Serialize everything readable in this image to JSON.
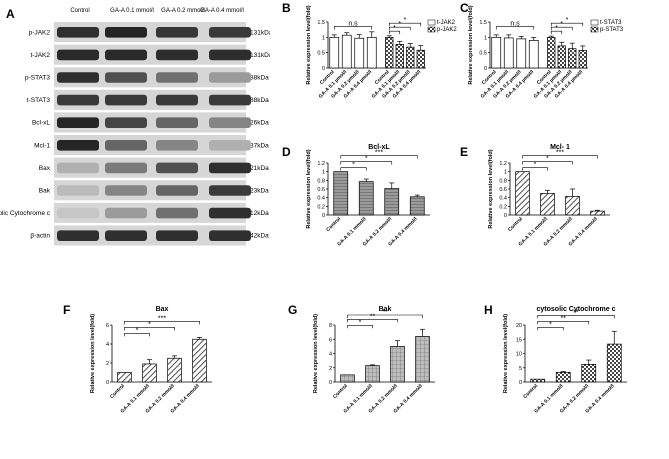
{
  "western_blot": {
    "panel_label": "A",
    "lanes": [
      "Control",
      "GA-A 0.1 mmol/l",
      "GA-A 0.2 mmol/l",
      "GA-A 0.4 mmol/l"
    ],
    "bands": [
      {
        "name": "p-JAK2",
        "size": "131kDa",
        "intensity": [
          0.85,
          0.9,
          0.82,
          0.8
        ]
      },
      {
        "name": "t-JAK2",
        "size": "131kDa",
        "intensity": [
          0.88,
          0.88,
          0.86,
          0.86
        ]
      },
      {
        "name": "p-STAT3",
        "size": "88kDa",
        "intensity": [
          0.85,
          0.7,
          0.55,
          0.35
        ]
      },
      {
        "name": "t-STAT3",
        "size": "88kDa",
        "intensity": [
          0.8,
          0.8,
          0.8,
          0.8
        ]
      },
      {
        "name": "Bcl-xL",
        "size": "26kDa",
        "intensity": [
          0.9,
          0.75,
          0.6,
          0.45
        ]
      },
      {
        "name": "Mcl-1",
        "size": "37kDa",
        "intensity": [
          0.9,
          0.6,
          0.45,
          0.25
        ]
      },
      {
        "name": "Bax",
        "size": "21kDa",
        "intensity": [
          0.25,
          0.5,
          0.7,
          0.85
        ]
      },
      {
        "name": "Bak",
        "size": "23kDa",
        "intensity": [
          0.2,
          0.45,
          0.6,
          0.8
        ]
      },
      {
        "name": "cytosolic Cytochrome c",
        "size": "12kDa",
        "intensity": [
          0.15,
          0.35,
          0.55,
          0.85
        ]
      },
      {
        "name": "β-actin",
        "size": "42kDa",
        "intensity": [
          0.85,
          0.85,
          0.85,
          0.85
        ]
      }
    ]
  },
  "chart_data": [
    {
      "panel": "B",
      "type": "bar",
      "title": "",
      "categories": [
        "Control",
        "GA-A 0.1 μmol/l",
        "GA-A 0.2 μmol/l",
        "GA-A 0.4 μmol/l"
      ],
      "series": [
        {
          "name": "t-JAK2",
          "values": [
            1.0,
            1.07,
            0.97,
            1.0
          ],
          "errors": [
            0.08,
            0.08,
            0.12,
            0.18
          ]
        },
        {
          "name": "p-JAK2",
          "values": [
            1.0,
            0.77,
            0.68,
            0.58
          ],
          "errors": [
            0.05,
            0.1,
            0.12,
            0.15
          ]
        }
      ],
      "ylabel": "Relative expression level(fold)",
      "ylim": [
        0,
        1.5
      ],
      "yticks": [
        0.0,
        0.5,
        1.0,
        1.5
      ],
      "legend": "top-right",
      "annotations": [
        {
          "label": "n.s",
          "from": 0,
          "to": 3,
          "series": 0
        },
        {
          "label": "*",
          "from": 0,
          "to": 1,
          "series": 1
        },
        {
          "label": "*",
          "from": 0,
          "to": 2,
          "series": 1
        },
        {
          "label": "*",
          "from": 0,
          "to": 3,
          "series": 1
        }
      ]
    },
    {
      "panel": "C",
      "type": "bar",
      "title": "",
      "categories": [
        "Control",
        "GA-A 0.1 μmol/l",
        "GA-A 0.2 μmol/l",
        "GA-A 0.4 μmol/l"
      ],
      "series": [
        {
          "name": "t-STAT3",
          "values": [
            1.0,
            0.98,
            0.95,
            0.9
          ],
          "errors": [
            0.08,
            0.1,
            0.08,
            0.1
          ]
        },
        {
          "name": "p-STAT3",
          "values": [
            1.0,
            0.72,
            0.63,
            0.57
          ],
          "errors": [
            0.04,
            0.12,
            0.18,
            0.15
          ]
        }
      ],
      "ylabel": "Relative expression level(fold)",
      "ylim": [
        0,
        1.5
      ],
      "yticks": [
        0.0,
        0.5,
        1.0,
        1.5
      ],
      "legend": "top-right",
      "annotations": [
        {
          "label": "n.s",
          "from": 0,
          "to": 3,
          "series": 0
        },
        {
          "label": "*",
          "from": 0,
          "to": 1,
          "series": 1
        },
        {
          "label": "*",
          "from": 0,
          "to": 2,
          "series": 1
        },
        {
          "label": "*",
          "from": 0,
          "to": 3,
          "series": 1
        }
      ]
    },
    {
      "panel": "D",
      "type": "bar",
      "title": "Bcl-xL",
      "categories": [
        "Control",
        "GA-A 0.1 mmol/l",
        "GA-A 0.2 mmol/l",
        "GA-A 0.4 mmol/l"
      ],
      "values": [
        1.0,
        0.77,
        0.61,
        0.42
      ],
      "errors": [
        0.0,
        0.06,
        0.13,
        0.04
      ],
      "ylabel": "Relative expression level(fold)",
      "ylim": [
        0,
        1.2
      ],
      "yticks": [
        0.0,
        0.2,
        0.4,
        0.6,
        0.8,
        1.0,
        1.2
      ],
      "annotations": [
        {
          "label": "*",
          "from": 0,
          "to": 1
        },
        {
          "label": "*",
          "from": 0,
          "to": 2
        },
        {
          "label": "***",
          "from": 0,
          "to": 3
        }
      ]
    },
    {
      "panel": "E",
      "type": "bar",
      "title": "Mcl- 1",
      "categories": [
        "Control",
        "GA-A 0.1 mmol/l",
        "GA-A 0.2 mmol/l",
        "GA-A 0.4 mmol/l"
      ],
      "values": [
        1.0,
        0.5,
        0.43,
        0.09
      ],
      "errors": [
        0.0,
        0.07,
        0.17,
        0.02
      ],
      "ylabel": "Relative expression level(fold)",
      "ylim": [
        0,
        1.2
      ],
      "yticks": [
        0.0,
        0.2,
        0.4,
        0.6,
        0.8,
        1.0,
        1.2
      ],
      "annotations": [
        {
          "label": "*",
          "from": 0,
          "to": 1
        },
        {
          "label": "*",
          "from": 0,
          "to": 2
        },
        {
          "label": "***",
          "from": 0,
          "to": 3
        }
      ]
    },
    {
      "panel": "F",
      "type": "bar",
      "title": "Bax",
      "categories": [
        "Control",
        "GA-A 0.1 mmol/l",
        "GA-A 0.2 mmol/l",
        "GA-A 0.4 mmol/l"
      ],
      "values": [
        1.0,
        1.9,
        2.5,
        4.5
      ],
      "errors": [
        0.0,
        0.45,
        0.25,
        0.2
      ],
      "ylabel": "Relative expression level(fold)",
      "ylim": [
        0,
        6
      ],
      "yticks": [
        0,
        2,
        4,
        6
      ],
      "annotations": [
        {
          "label": "*",
          "from": 0,
          "to": 1
        },
        {
          "label": "*",
          "from": 0,
          "to": 2
        },
        {
          "label": "***",
          "from": 0,
          "to": 3
        }
      ]
    },
    {
      "panel": "G",
      "type": "bar",
      "title": "Bak",
      "categories": [
        "Control",
        "GA-A 0.1 mmol/l",
        "GA-A 0.2 mmol/l",
        "GA-A 0.4 mmol/l"
      ],
      "values": [
        1.0,
        2.3,
        5.0,
        6.4
      ],
      "errors": [
        0.0,
        0.1,
        0.8,
        1.0
      ],
      "ylabel": "Relative expression level(fold)",
      "ylim": [
        0,
        8
      ],
      "yticks": [
        0,
        2,
        4,
        6,
        8
      ],
      "annotations": [
        {
          "label": "*",
          "from": 0,
          "to": 1
        },
        {
          "label": "**",
          "from": 0,
          "to": 2
        },
        {
          "label": "**",
          "from": 0,
          "to": 3
        }
      ]
    },
    {
      "panel": "H",
      "type": "bar",
      "title": "cytosolic Cytochrome c",
      "categories": [
        "Control",
        "GA-A 0.1 mmol/l",
        "GA-A 0.2 mmol/l",
        "GA-A 0.4 mmol/l"
      ],
      "values": [
        1.0,
        3.4,
        6.2,
        13.3
      ],
      "errors": [
        0.0,
        0.3,
        1.5,
        4.5
      ],
      "ylabel": "Relative expression level(fold)",
      "ylim": [
        0,
        20
      ],
      "yticks": [
        0,
        5,
        10,
        15,
        20
      ],
      "annotations": [
        {
          "label": "*",
          "from": 0,
          "to": 1
        },
        {
          "label": "**",
          "from": 0,
          "to": 2
        },
        {
          "label": "**",
          "from": 0,
          "to": 3
        }
      ]
    }
  ]
}
